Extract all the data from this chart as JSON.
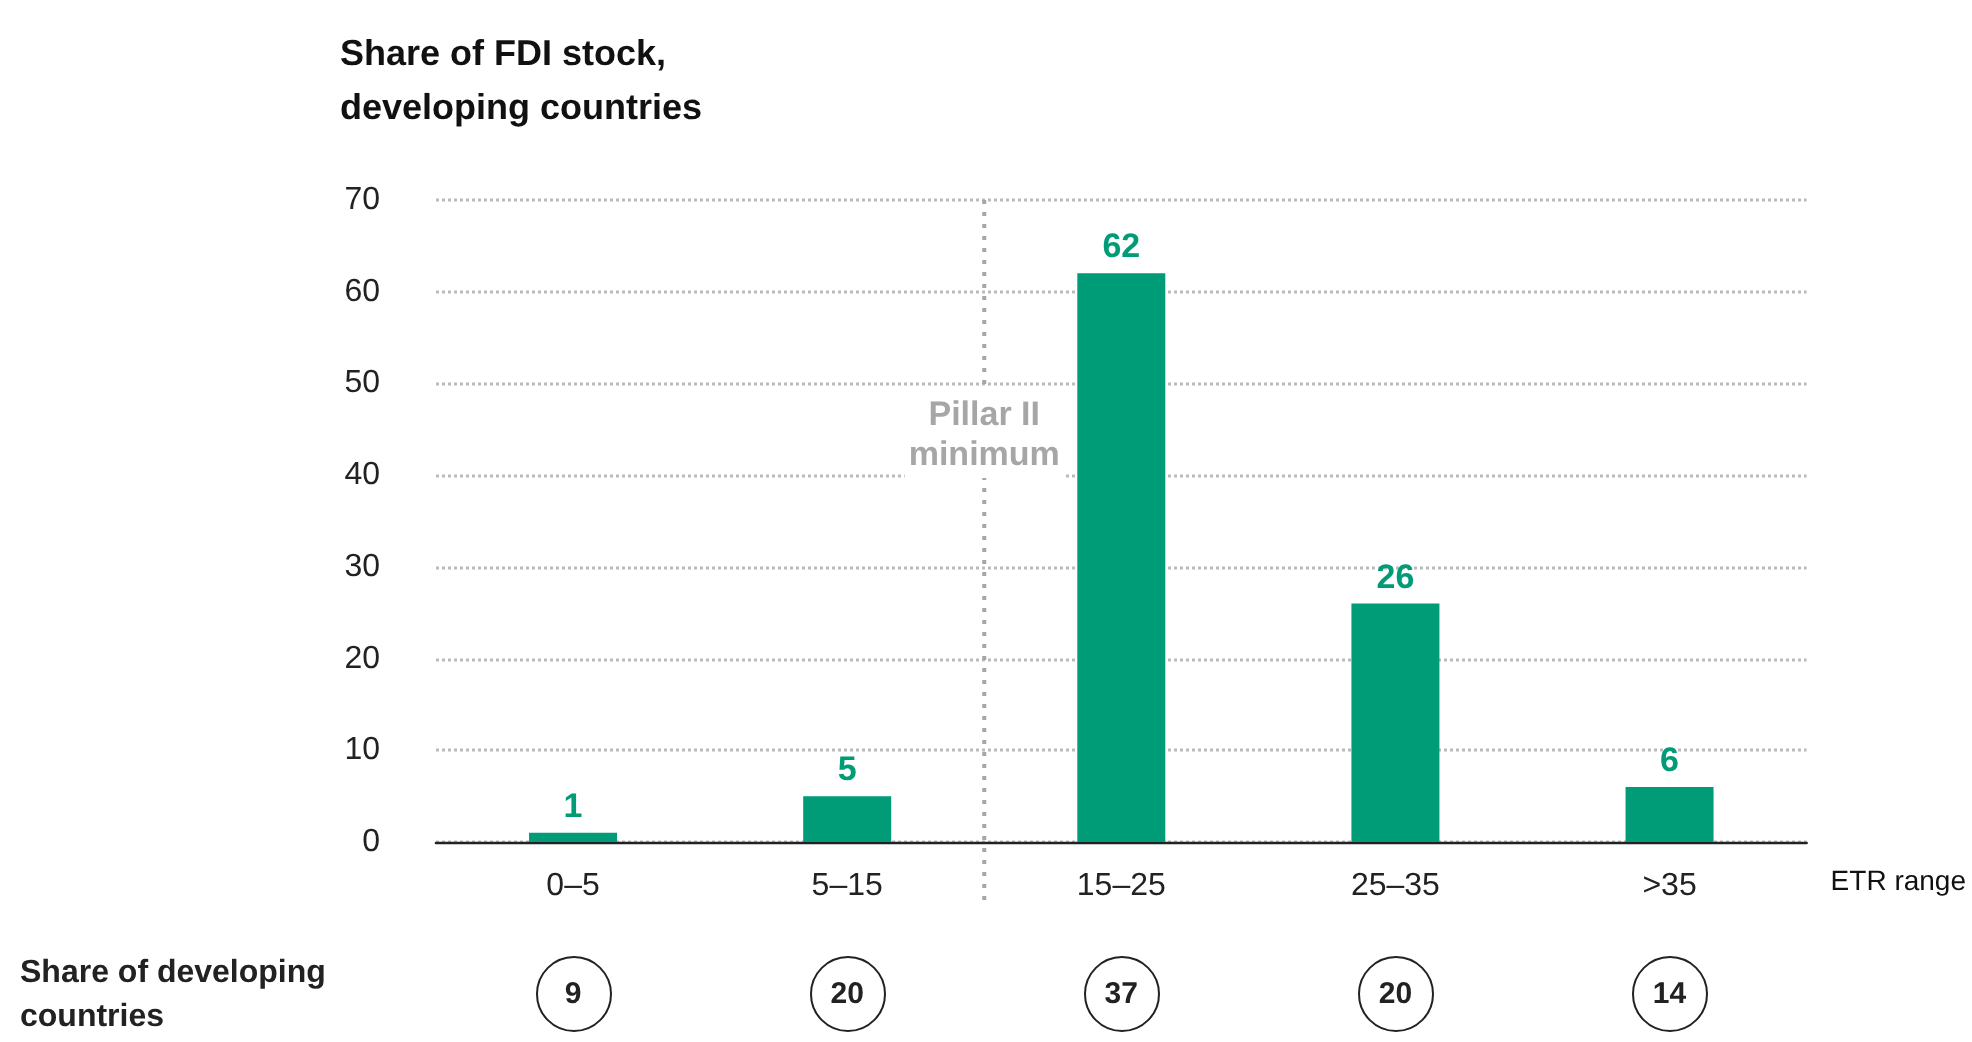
{
  "chart_data": {
    "type": "bar",
    "ylabel": "Share of FDI stock,\ndeveloping countries",
    "xlabel": "ETR range",
    "categories": [
      "0–5",
      "5–15",
      "15–25",
      "25–35",
      ">35"
    ],
    "values": [
      1,
      5,
      62,
      26,
      6
    ],
    "color": "#009b77",
    "ylim": [
      0,
      70
    ],
    "yticks": [
      0,
      10,
      20,
      30,
      40,
      50,
      60,
      70
    ],
    "grid": "y",
    "data_labels": true,
    "ref_lines": [
      {
        "axis": "x",
        "value": "15–25",
        "label": "Pillar II\nminimum",
        "color": "#a6a6a6",
        "line_style": "dotted"
      }
    ],
    "annotations": [
      "Share of developing countries",
      "9",
      "20",
      "37",
      "20",
      "14"
    ]
  }
}
